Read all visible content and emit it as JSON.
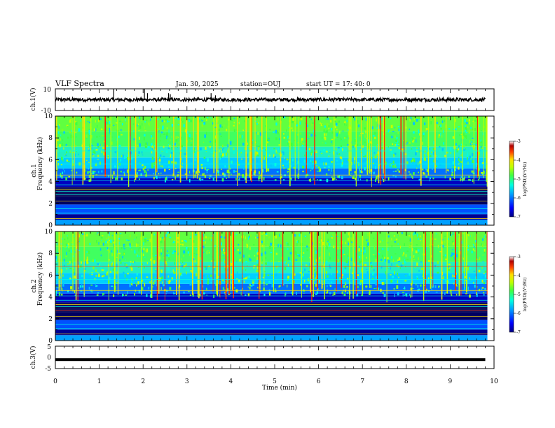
{
  "header": {
    "title": "VLF Spectra",
    "date": "Jan. 30, 2025",
    "station": "station=OUJ",
    "start_ut": "start UT =  17: 40: 0"
  },
  "colors": {
    "waveform": "#000000",
    "background": "#ffffff",
    "spectrogram_colormap": [
      "#000080",
      "#0000ff",
      "#00a0ff",
      "#00ffe0",
      "#40ff40",
      "#c0ff00",
      "#ffe000",
      "#ff4000",
      "#b00000",
      "#ffffff"
    ]
  },
  "chart_data": [
    {
      "name": "ch1-waveform",
      "type": "line",
      "ylabel": "ch.1(V)",
      "ylim": [
        -10,
        10
      ],
      "y_ticks": [
        "10",
        "-10"
      ],
      "xlim": [
        0,
        10
      ],
      "baseline_value": 0,
      "spikes": [
        {
          "t": 1.33,
          "v": 10
        },
        {
          "t": 2.03,
          "v": 10
        },
        {
          "t": 2.1,
          "v": 6
        },
        {
          "t": 2.58,
          "v": 6
        },
        {
          "t": 2.62,
          "v": 5
        },
        {
          "t": 3.55,
          "v": 6
        },
        {
          "t": 3.65,
          "v": 4
        }
      ]
    },
    {
      "name": "ch1-spectrogram",
      "type": "heatmap",
      "ylabel_top": "ch.1",
      "ylabel_bottom": "Frequency (kHz)",
      "ylim": [
        0,
        10
      ],
      "y_ticks": [
        "0",
        "2",
        "4",
        "6",
        "8",
        "10"
      ],
      "xlim": [
        0,
        10
      ],
      "colorbar": {
        "label": "log(PSD)(V²/Hz)",
        "range": [
          -7,
          -3
        ],
        "ticks": [
          "-3",
          "-4",
          "-5",
          "-6",
          "-7"
        ]
      }
    },
    {
      "name": "ch2-spectrogram",
      "type": "heatmap",
      "ylabel_top": "ch.2",
      "ylabel_bottom": "Frequency (kHz)",
      "ylim": [
        0,
        10
      ],
      "y_ticks": [
        "0",
        "2",
        "4",
        "6",
        "8",
        "10"
      ],
      "xlim": [
        0,
        10
      ],
      "colorbar": {
        "label": "log(PSD)(V²/Hz)",
        "range": [
          -7,
          -3
        ],
        "ticks": [
          "-3",
          "-4",
          "-5",
          "-6",
          "-7"
        ]
      }
    },
    {
      "name": "ch3-waveform",
      "type": "line",
      "ylabel": "ch.3(V)",
      "ylim": [
        -5,
        5
      ],
      "y_ticks": [
        "5",
        "0",
        "-5"
      ],
      "xlim": [
        0,
        10
      ],
      "baseline_value": -1
    }
  ],
  "x_axis": {
    "label": "Time (min)",
    "ticks": [
      "0",
      "1",
      "2",
      "3",
      "4",
      "5",
      "6",
      "7",
      "8",
      "9",
      "10"
    ]
  }
}
